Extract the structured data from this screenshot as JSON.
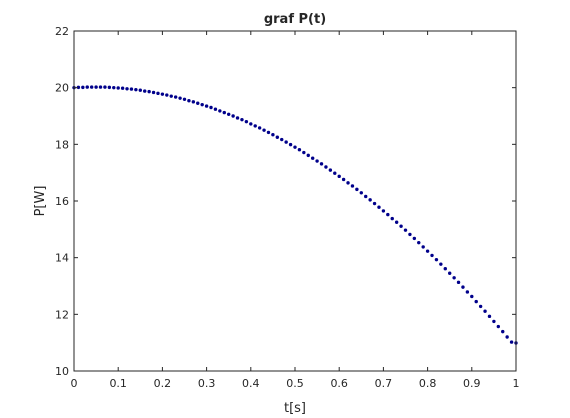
{
  "chart_data": {
    "type": "scatter",
    "title": "graf P(t)",
    "xlabel": "t[s]",
    "ylabel": "P[W]",
    "xlim": [
      0,
      1
    ],
    "ylim": [
      10,
      22
    ],
    "xticks": [
      0,
      0.1,
      0.2,
      0.3,
      0.4,
      0.5,
      0.6,
      0.7,
      0.8,
      0.9,
      1
    ],
    "xtick_labels": [
      "0",
      "0.1",
      "0.2",
      "0.3",
      "0.4",
      "0.5",
      "0.6",
      "0.7",
      "0.8",
      "0.9",
      "1"
    ],
    "yticks": [
      10,
      12,
      14,
      16,
      18,
      20,
      22
    ],
    "ytick_labels": [
      "10",
      "12",
      "14",
      "16",
      "18",
      "20",
      "22"
    ],
    "grid": false,
    "box": true,
    "marker_color": "#00008b",
    "series": [
      {
        "x": [
          0,
          0.01,
          0.02,
          0.03,
          0.04,
          0.05,
          0.06,
          0.07,
          0.08,
          0.09,
          0.1,
          0.11,
          0.12,
          0.13,
          0.14,
          0.15,
          0.16,
          0.17,
          0.18,
          0.19,
          0.2,
          0.21,
          0.22,
          0.23,
          0.24,
          0.25,
          0.26,
          0.27,
          0.28,
          0.29,
          0.3,
          0.31,
          0.32,
          0.33,
          0.34,
          0.35,
          0.36,
          0.37,
          0.38,
          0.39,
          0.4,
          0.41,
          0.42,
          0.43,
          0.44,
          0.45,
          0.46,
          0.47,
          0.48,
          0.49,
          0.5,
          0.51,
          0.52,
          0.53,
          0.54,
          0.55,
          0.56,
          0.57,
          0.58,
          0.59,
          0.6,
          0.61,
          0.62,
          0.63,
          0.64,
          0.65,
          0.66,
          0.67,
          0.68,
          0.69,
          0.7,
          0.71,
          0.72,
          0.73,
          0.74,
          0.75,
          0.76,
          0.77,
          0.78,
          0.79,
          0.8,
          0.81,
          0.82,
          0.83,
          0.84,
          0.85,
          0.86,
          0.87,
          0.88,
          0.89,
          0.9,
          0.91,
          0.92,
          0.93,
          0.94,
          0.95,
          0.96,
          0.97,
          0.98,
          0.99,
          1
        ],
        "y": [
          20.0,
          20.01,
          20.01,
          20.02,
          20.02,
          20.02,
          20.02,
          20.02,
          20.01,
          20.0,
          19.99,
          19.98,
          19.96,
          19.95,
          19.93,
          19.91,
          19.88,
          19.86,
          19.83,
          19.8,
          19.77,
          19.74,
          19.7,
          19.67,
          19.63,
          19.59,
          19.54,
          19.5,
          19.45,
          19.4,
          19.35,
          19.3,
          19.24,
          19.18,
          19.12,
          19.06,
          19.0,
          18.93,
          18.87,
          18.8,
          18.72,
          18.65,
          18.58,
          18.5,
          18.42,
          18.34,
          18.25,
          18.17,
          18.08,
          17.99,
          17.9,
          17.81,
          17.71,
          17.61,
          17.51,
          17.41,
          17.31,
          17.2,
          17.09,
          16.98,
          16.87,
          16.76,
          16.64,
          16.53,
          16.41,
          16.29,
          16.16,
          16.04,
          15.91,
          15.78,
          15.65,
          15.52,
          15.38,
          15.25,
          15.11,
          14.97,
          14.82,
          14.68,
          14.53,
          14.38,
          14.23,
          14.08,
          13.93,
          13.77,
          13.61,
          13.45,
          13.29,
          13.13,
          12.96,
          12.79,
          12.63,
          12.45,
          12.28,
          12.11,
          11.93,
          11.75,
          11.57,
          11.39,
          11.2,
          11.02,
          10.99
        ]
      }
    ]
  }
}
